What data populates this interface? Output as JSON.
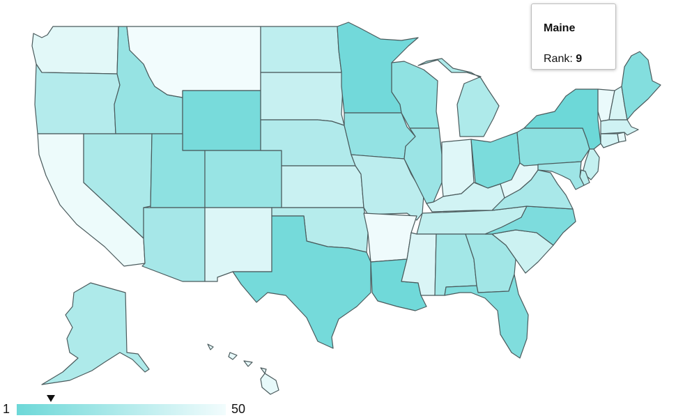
{
  "tooltip": {
    "state": "Maine",
    "rank_label": "Rank:",
    "rank_value": "9"
  },
  "legend": {
    "min_label": "1",
    "max_label": "50",
    "min_rank": 1,
    "max_rank": 50,
    "marker_rank": 9,
    "color_low": "#6dd8d8",
    "color_high": "#f2fcfd"
  },
  "states": [
    {
      "id": "WA",
      "rank": 44
    },
    {
      "id": "OR",
      "rank": 27
    },
    {
      "id": "CA",
      "rank": 48
    },
    {
      "id": "ID",
      "rank": 16
    },
    {
      "id": "NV",
      "rank": 24
    },
    {
      "id": "MT",
      "rank": 50
    },
    {
      "id": "WY",
      "rank": 5
    },
    {
      "id": "UT",
      "rank": 13
    },
    {
      "id": "AZ",
      "rank": 22
    },
    {
      "id": "CO",
      "rank": 17
    },
    {
      "id": "NM",
      "rank": 42
    },
    {
      "id": "ND",
      "rank": 31
    },
    {
      "id": "SD",
      "rank": 34
    },
    {
      "id": "NE",
      "rank": 26
    },
    {
      "id": "KS",
      "rank": 35
    },
    {
      "id": "OK",
      "rank": 28
    },
    {
      "id": "TX",
      "rank": 4
    },
    {
      "id": "MN",
      "rank": 3
    },
    {
      "id": "IA",
      "rank": 15
    },
    {
      "id": "MO",
      "rank": 30
    },
    {
      "id": "AR",
      "rank": 49
    },
    {
      "id": "LA",
      "rank": 2
    },
    {
      "id": "WI",
      "rank": 14
    },
    {
      "id": "IL",
      "rank": 18
    },
    {
      "id": "MI",
      "rank": 25
    },
    {
      "id": "IN",
      "rank": 43
    },
    {
      "id": "OH",
      "rank": 6
    },
    {
      "id": "KY",
      "rank": 38
    },
    {
      "id": "TN",
      "rank": 32
    },
    {
      "id": "MS",
      "rank": 41
    },
    {
      "id": "AL",
      "rank": 21
    },
    {
      "id": "GA",
      "rank": 20
    },
    {
      "id": "FL",
      "rank": 8
    },
    {
      "id": "SC",
      "rank": 36
    },
    {
      "id": "NC",
      "rank": 7
    },
    {
      "id": "VA",
      "rank": 23
    },
    {
      "id": "WV",
      "rank": 45
    },
    {
      "id": "PA",
      "rank": 12
    },
    {
      "id": "NY",
      "rank": 1
    },
    {
      "id": "VT",
      "rank": 47
    },
    {
      "id": "NH",
      "rank": 40
    },
    {
      "id": "ME",
      "rank": 9
    },
    {
      "id": "MA",
      "rank": 37
    },
    {
      "id": "CT",
      "rank": 39
    },
    {
      "id": "RI",
      "rank": 46
    },
    {
      "id": "NJ",
      "rank": 33
    },
    {
      "id": "DE",
      "rank": 29
    },
    {
      "id": "MD",
      "rank": 19
    },
    {
      "id": "AK",
      "rank": 25
    },
    {
      "id": "HI",
      "rank": 46
    }
  ]
}
